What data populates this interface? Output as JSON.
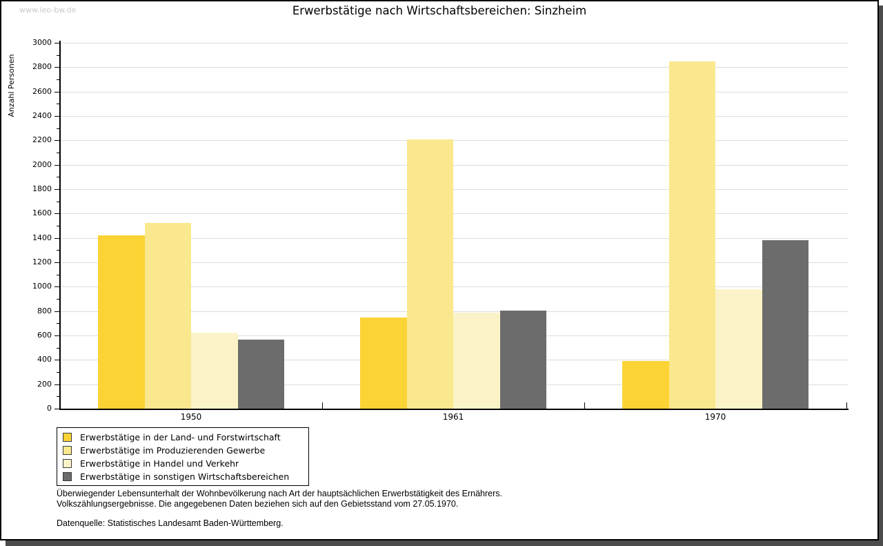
{
  "watermark": "www.leo-bw.de",
  "title": "Erwerbstätige nach Wirtschaftsbereichen: Sinzheim",
  "chart_data": {
    "type": "bar",
    "title": "Erwerbstätige nach Wirtschaftsbereichen: Sinzheim",
    "xlabel": "",
    "ylabel": "Anzahl Personen",
    "ylim": [
      0,
      3000
    ],
    "ytick_step": 200,
    "ytick_minor_step": 100,
    "grid": true,
    "legend_position": "bottom-left",
    "categories": [
      "1950",
      "1961",
      "1970"
    ],
    "series": [
      {
        "name": "Erwerbstätige in der Land- und Forstwirtschaft",
        "color": "#fbd335",
        "values": [
          1420,
          745,
          390
        ]
      },
      {
        "name": "Erwerbstätige im Produzierenden Gewerbe",
        "color": "#fae88e",
        "values": [
          1520,
          2210,
          2845
        ]
      },
      {
        "name": "Erwerbstätige in Handel und Verkehr",
        "color": "#fbf3c7",
        "values": [
          620,
          785,
          980
        ]
      },
      {
        "name": "Erwerbstätige in sonstigen Wirtschaftsbereichen",
        "color": "#6c6c6c",
        "values": [
          565,
          805,
          1380
        ]
      }
    ]
  },
  "footnotes": [
    "Überwiegender Lebensunterhalt der Wohnbevölkerung nach Art der hauptsächlichen Erwerbstätigkeit des Ernährers.",
    "Volkszählungsergebnisse. Die angegebenen Daten beziehen sich auf den Gebietsstand vom 27.05.1970."
  ],
  "source": "Datenquelle: Statistisches Landesamt Baden-Württemberg.",
  "colors": {
    "gridline": "#dcdcdc",
    "axis": "#000000",
    "watermark": "#c8c8c8",
    "frame_shadow": "#4c4c4c"
  }
}
